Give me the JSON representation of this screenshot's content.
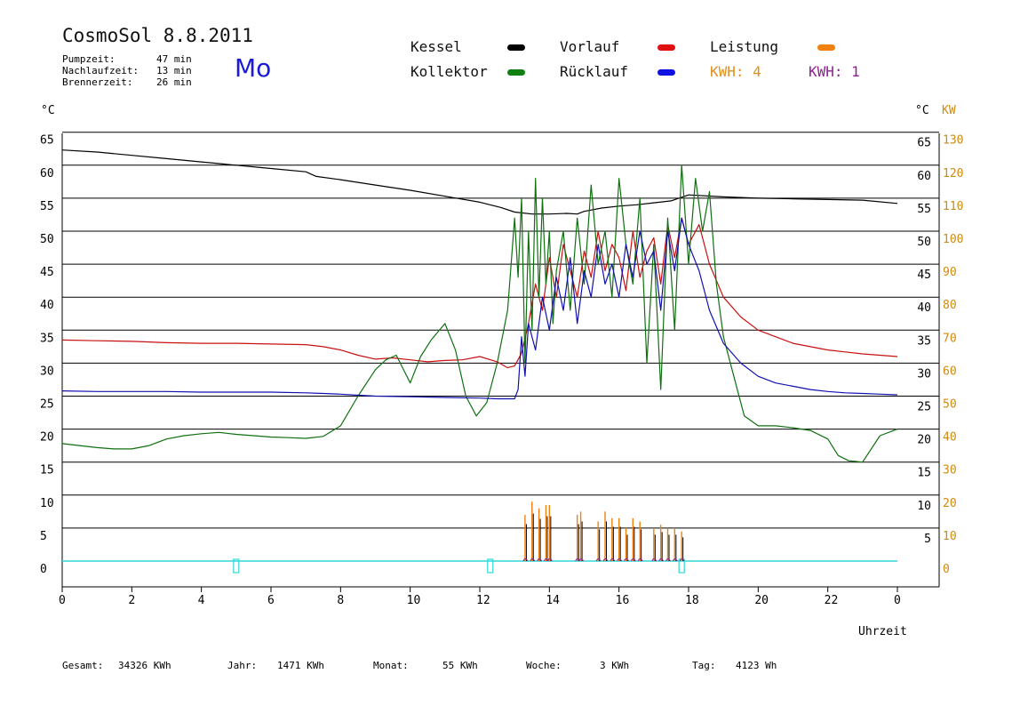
{
  "header": {
    "title": "CosmoSol 8.8.2011",
    "day": "Mo",
    "stats": [
      {
        "label": "Pumpzeit:",
        "value": "47 min"
      },
      {
        "label": "Nachlaufzeit:",
        "value": "13 min"
      },
      {
        "label": "Brennerzeit:",
        "value": "26 min"
      }
    ]
  },
  "legend": [
    {
      "label": "Kessel",
      "color": "#000000",
      "has_swatch": true
    },
    {
      "label": "Vorlauf",
      "color": "#e01010",
      "has_swatch": true
    },
    {
      "label": "Leistung",
      "color": "#f08010",
      "has_swatch": true
    },
    {
      "label": "Kollektor",
      "color": "#108010",
      "has_swatch": true
    },
    {
      "label": "Rücklauf",
      "color": "#1010e0",
      "has_swatch": true
    },
    {
      "label": "KWH: 4",
      "color": "#e09020",
      "has_swatch": false
    },
    {
      "label": "KWH: 1",
      "color": "#902090",
      "has_swatch": false
    }
  ],
  "footer": [
    {
      "label": "Gesamt:",
      "value": "34326 KWh"
    },
    {
      "label": "Jahr:",
      "value": "1471 KWh"
    },
    {
      "label": "Monat:",
      "value": "55 KWh"
    },
    {
      "label": "Woche:",
      "value": "3 KWh"
    },
    {
      "label": "Tag:",
      "value": "4123 Wh"
    }
  ],
  "colors": {
    "kessel": "#000000",
    "vorlauf": "#c81010",
    "kollektor": "#107010",
    "ruecklauf": "#1010b0",
    "leistung": "#f08010",
    "kwh_small": "#902090",
    "baseline": "#30d8d8",
    "kw_axis": "#d08a10"
  },
  "chart_data": {
    "type": "line",
    "xlabel": "Uhrzeit",
    "ylabel_left": "°C",
    "ylabel_right_temp": "°C",
    "ylabel_right_power": "KW",
    "x_ticks": [
      "0",
      "2",
      "4",
      "6",
      "8",
      "10",
      "12",
      "14",
      "16",
      "18",
      "20",
      "22",
      "0"
    ],
    "x_range": [
      0,
      24
    ],
    "y_ticks_left": [
      "65",
      "60",
      "55",
      "50",
      "45",
      "40",
      "35",
      "30",
      "25",
      "20",
      "15",
      "10",
      "5",
      "0"
    ],
    "y_ticks_right": [
      "65",
      "60",
      "55",
      "50",
      "45",
      "40",
      "35",
      "30",
      "25",
      "20",
      "15",
      "10",
      "5"
    ],
    "y_ticks_kw": [
      "130",
      "120",
      "110",
      "100",
      "90",
      "80",
      "70",
      "60",
      "50",
      "40",
      "30",
      "20",
      "10",
      "0"
    ],
    "ylim": [
      0,
      65
    ],
    "grid": "horizontal",
    "series": [
      {
        "name": "Kessel",
        "key": "kessel",
        "x": [
          0,
          1,
          2,
          3,
          4,
          5,
          6,
          7,
          7.3,
          8,
          9,
          10,
          11,
          12,
          12.6,
          13,
          13.5,
          14,
          14.5,
          14.8,
          15,
          15.5,
          16,
          16.5,
          17,
          17.5,
          18,
          19,
          20,
          21,
          22,
          23,
          24
        ],
        "y": [
          62.3,
          62,
          61.5,
          61,
          60.5,
          60,
          59.5,
          59,
          58.3,
          57.8,
          57,
          56.2,
          55.3,
          54.4,
          53.6,
          52.9,
          52.6,
          52.6,
          52.7,
          52.6,
          53,
          53.5,
          53.8,
          54,
          54.3,
          54.6,
          55.5,
          55.2,
          55,
          54.9,
          54.8,
          54.7,
          54.2
        ]
      },
      {
        "name": "Vorlauf",
        "key": "vorlauf",
        "x": [
          0,
          1,
          2,
          3,
          4,
          5,
          6,
          7,
          7.5,
          8,
          8.5,
          9,
          9.5,
          10,
          10.5,
          11,
          11.5,
          12,
          12.5,
          12.8,
          13,
          13.2,
          13.4,
          13.6,
          13.8,
          14,
          14.2,
          14.4,
          14.6,
          14.8,
          15,
          15.2,
          15.4,
          15.6,
          15.8,
          16,
          16.2,
          16.4,
          16.6,
          16.8,
          17,
          17.2,
          17.4,
          17.6,
          17.8,
          18,
          18.3,
          18.6,
          19,
          19.5,
          20,
          20.5,
          21,
          21.5,
          22,
          22.5,
          23,
          23.5,
          24
        ],
        "y": [
          33.5,
          33.4,
          33.3,
          33.1,
          33,
          33,
          32.9,
          32.8,
          32.5,
          32,
          31.2,
          30.6,
          30.8,
          30.5,
          30.2,
          30.4,
          30.5,
          31,
          30.2,
          29.3,
          29.6,
          31.5,
          36,
          42,
          38,
          46,
          40,
          48,
          44,
          40,
          47,
          43,
          50,
          44,
          48,
          46,
          41,
          50,
          43,
          47,
          49,
          42,
          51,
          46,
          52,
          48,
          51,
          45,
          40,
          37,
          35,
          34,
          33,
          32.5,
          32,
          31.7,
          31.4,
          31.2,
          31
        ]
      },
      {
        "name": "Kollektor",
        "key": "kollektor",
        "x": [
          0,
          1,
          1.5,
          2,
          2.5,
          3,
          3.5,
          4,
          4.5,
          5,
          5.5,
          6,
          6.5,
          7,
          7.5,
          8,
          8.5,
          9,
          9.3,
          9.6,
          10,
          10.3,
          10.6,
          11,
          11.3,
          11.6,
          11.9,
          12.2,
          12.5,
          12.8,
          13,
          13.1,
          13.2,
          13.3,
          13.4,
          13.5,
          13.6,
          13.7,
          13.8,
          13.9,
          14,
          14.1,
          14.2,
          14.4,
          14.6,
          14.8,
          15,
          15.2,
          15.4,
          15.6,
          15.8,
          16,
          16.2,
          16.4,
          16.6,
          16.8,
          17,
          17.2,
          17.4,
          17.6,
          17.8,
          18,
          18.2,
          18.4,
          18.6,
          18.8,
          19,
          19.3,
          19.6,
          20,
          20.5,
          21,
          21.5,
          22,
          22.3,
          22.6,
          23,
          23.5,
          24
        ],
        "y": [
          17.8,
          17.2,
          17,
          17,
          17.5,
          18.5,
          19,
          19.3,
          19.5,
          19.2,
          19,
          18.8,
          18.7,
          18.6,
          18.9,
          20.5,
          25,
          29,
          30.5,
          31.2,
          27,
          31,
          33.5,
          36,
          32,
          25,
          22,
          24,
          30,
          38,
          52,
          43,
          55,
          30,
          50,
          35,
          58,
          40,
          55,
          42,
          50,
          36,
          44,
          50,
          38,
          52,
          42,
          57,
          45,
          50,
          40,
          58,
          48,
          42,
          55,
          30,
          48,
          26,
          52,
          35,
          60,
          45,
          58,
          50,
          56,
          42,
          34,
          28,
          22,
          20.5,
          20.5,
          20.2,
          19.8,
          18.5,
          16,
          15.2,
          15,
          19,
          20
        ]
      },
      {
        "name": "Rücklauf",
        "key": "ruecklauf",
        "x": [
          0,
          1,
          2,
          3,
          4,
          5,
          6,
          7,
          7.5,
          8,
          9,
          10,
          11,
          12,
          12.5,
          13,
          13.1,
          13.2,
          13.3,
          13.4,
          13.6,
          13.8,
          14,
          14.2,
          14.4,
          14.6,
          14.8,
          15,
          15.2,
          15.4,
          15.6,
          15.8,
          16,
          16.2,
          16.4,
          16.6,
          16.8,
          17,
          17.2,
          17.4,
          17.6,
          17.8,
          18,
          18.3,
          18.6,
          19,
          19.5,
          20,
          20.5,
          21,
          21.5,
          22,
          22.5,
          23,
          23.5,
          24
        ],
        "y": [
          25.8,
          25.7,
          25.7,
          25.7,
          25.6,
          25.6,
          25.6,
          25.5,
          25.4,
          25.3,
          25,
          24.9,
          24.8,
          24.7,
          24.6,
          24.6,
          26,
          34,
          28,
          36,
          32,
          40,
          35,
          43,
          38,
          46,
          36,
          44,
          40,
          48,
          42,
          45,
          40,
          48,
          43,
          50,
          45,
          47,
          38,
          50,
          44,
          52,
          48,
          44,
          38,
          33,
          30,
          28,
          27,
          26.5,
          26,
          25.7,
          25.5,
          25.4,
          25.3,
          25.2
        ]
      }
    ],
    "power_spikes": {
      "name": "Leistung",
      "x": [
        13.3,
        13.5,
        13.7,
        13.9,
        14.0,
        14.8,
        14.9,
        15.4,
        15.6,
        15.8,
        16.0,
        16.2,
        16.4,
        16.6,
        17.0,
        17.2,
        17.4,
        17.6,
        17.8
      ],
      "kw": [
        14,
        18,
        16,
        17,
        17,
        14,
        15,
        12,
        15,
        13,
        13,
        10,
        13,
        12,
        10,
        11,
        10,
        10,
        9
      ]
    },
    "baseline_markers_x": [
      5.0,
      12.3,
      17.8
    ]
  }
}
